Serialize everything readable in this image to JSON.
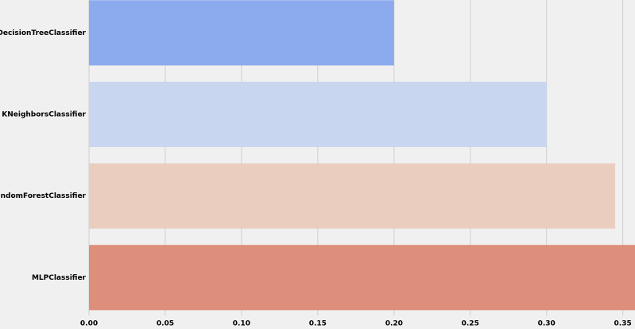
{
  "chart_data": {
    "type": "bar",
    "orientation": "horizontal",
    "categories": [
      "DecisionTreeClassifier",
      "KNeighborsClassifier",
      "RandomForestClassifier",
      "MLPClassifier"
    ],
    "values": [
      0.2,
      0.3,
      0.345,
      0.358
    ],
    "colors": [
      "#8caaee",
      "#c9d6f0",
      "#ebcdbf",
      "#dd8f7b"
    ],
    "xlim": [
      0,
      0.358
    ],
    "xticks": [
      {
        "value": 0,
        "label": "0.00"
      },
      {
        "value": 0.05,
        "label": "0.05"
      },
      {
        "value": 0.1,
        "label": "0.10"
      },
      {
        "value": 0.15,
        "label": "0.15"
      },
      {
        "value": 0.2,
        "label": "0.20"
      },
      {
        "value": 0.25,
        "label": "0.25"
      },
      {
        "value": 0.3,
        "label": "0.30"
      },
      {
        "value": 0.35,
        "label": "0.35"
      }
    ],
    "grid": true
  }
}
